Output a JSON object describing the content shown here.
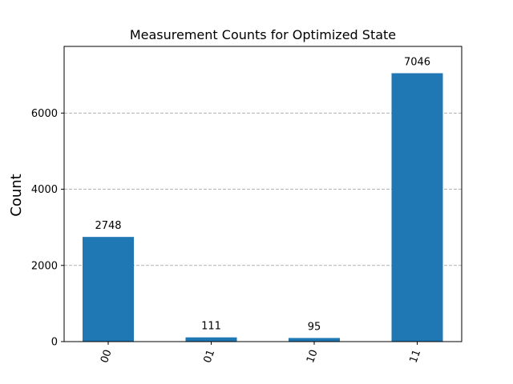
{
  "chart_data": {
    "type": "bar",
    "title": "Measurement Counts for Optimized State",
    "xlabel": "",
    "ylabel": "Count",
    "categories": [
      "00",
      "01",
      "10",
      "11"
    ],
    "values": [
      2748,
      111,
      95,
      7046
    ],
    "data_labels": [
      "2748",
      "111",
      "95",
      "7046"
    ],
    "ylim": [
      0,
      7750
    ],
    "yticks": [
      0,
      2000,
      4000,
      6000
    ],
    "ytick_labels": [
      "0",
      "2000",
      "4000",
      "6000"
    ],
    "x_tick_rotation": "70 degrees",
    "grid": "y-axis dashed",
    "legend": "none",
    "colors": {
      "bar": "#1f77b4",
      "grid": "#b0b0b0"
    }
  }
}
